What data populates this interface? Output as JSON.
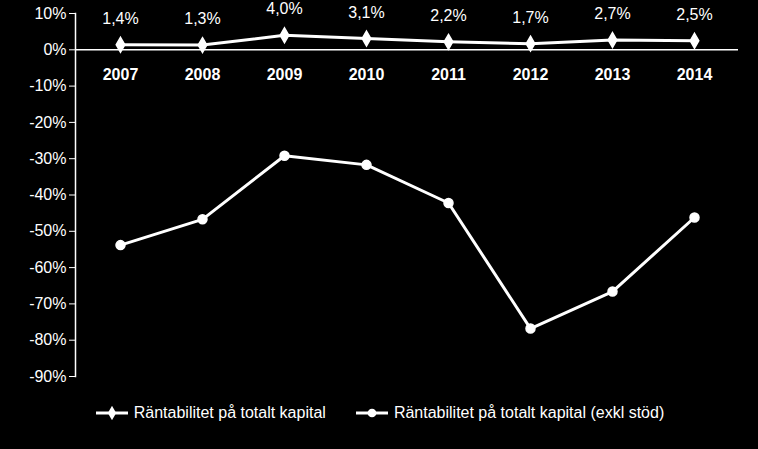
{
  "chart_data": {
    "type": "line",
    "categories": [
      "2007",
      "2008",
      "2009",
      "2010",
      "2011",
      "2012",
      "2013",
      "2014"
    ],
    "ylim": [
      -90,
      10
    ],
    "yticks": [
      {
        "value": 10,
        "label": "10%"
      },
      {
        "value": 0,
        "label": "0%"
      },
      {
        "value": -10,
        "label": "-10%"
      },
      {
        "value": -20,
        "label": "-20%"
      },
      {
        "value": -30,
        "label": "-30%"
      },
      {
        "value": -40,
        "label": "-40%"
      },
      {
        "value": -50,
        "label": "-50%"
      },
      {
        "value": -60,
        "label": "-60%"
      },
      {
        "value": -70,
        "label": "-70%"
      },
      {
        "value": -80,
        "label": "-80%"
      },
      {
        "value": -90,
        "label": "-90%"
      }
    ],
    "grid": false,
    "legend": "bottom",
    "series": [
      {
        "name": "Räntabilitet på totalt kapital",
        "color": "#ffffff",
        "marker": "diamond",
        "data_labels": true,
        "values": [
          1.4,
          1.3,
          4.0,
          3.1,
          2.2,
          1.7,
          2.7,
          2.5
        ],
        "value_labels": [
          "1,4%",
          "1,3%",
          "4,0%",
          "3,1%",
          "2,2%",
          "1,7%",
          "2,7%",
          "2,5%"
        ]
      },
      {
        "name": "Räntabilitet på totalt kapital (exkl stöd)",
        "color": "#ffffff",
        "marker": "circle",
        "values": [
          -53.8,
          -46.7,
          -29.2,
          -31.7,
          -42.2,
          -76.8,
          -66.6,
          -46.2
        ]
      }
    ]
  }
}
